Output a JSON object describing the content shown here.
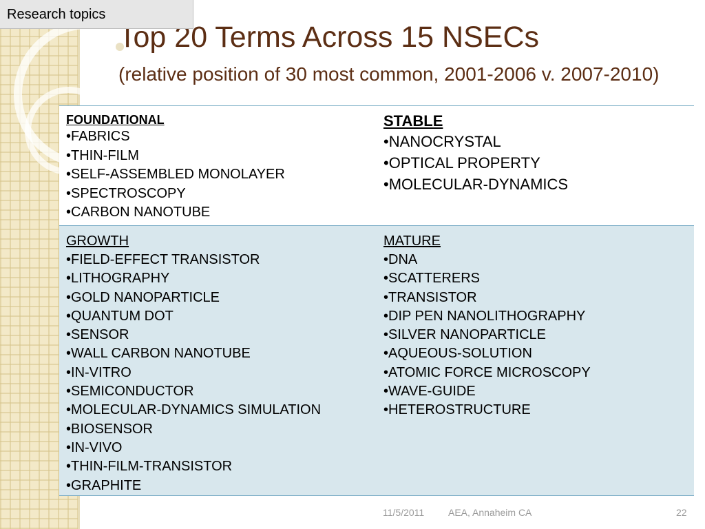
{
  "tag": "Research topics",
  "title": "Top 20 Terms Across 15 NSECs",
  "subtitle": "(relative position of 30 most common, 2001-2006 v. 2007-2010)",
  "quadrants": {
    "foundational": {
      "title": "FOUNDATIONAL",
      "items": [
        "FABRICS",
        "THIN-FILM",
        "SELF-ASSEMBLED MONOLAYER",
        "SPECTROSCOPY",
        "CARBON NANOTUBE"
      ]
    },
    "stable": {
      "title": "STABLE",
      "items": [
        "NANOCRYSTAL",
        "OPTICAL PROPERTY",
        "MOLECULAR-DYNAMICS"
      ]
    },
    "growth": {
      "title": "GROWTH",
      "items": [
        "FIELD-EFFECT TRANSISTOR",
        "LITHOGRAPHY",
        "GOLD NANOPARTICLE",
        "QUANTUM DOT",
        "SENSOR",
        "WALL CARBON NANOTUBE",
        "IN-VITRO",
        "SEMICONDUCTOR",
        "MOLECULAR-DYNAMICS SIMULATION",
        "BIOSENSOR",
        "IN-VIVO",
        "THIN-FILM-TRANSISTOR",
        "GRAPHITE"
      ]
    },
    "mature": {
      "title": "MATURE",
      "items": [
        "DNA",
        "SCATTERERS",
        "TRANSISTOR",
        "DIP PEN NANOLITHOGRAPHY",
        "SILVER NANOPARTICLE",
        "AQUEOUS-SOLUTION",
        "ATOMIC FORCE MICROSCOPY",
        "WAVE-GUIDE",
        "HETEROSTRUCTURE"
      ]
    }
  },
  "footer": {
    "date": "11/5/2011",
    "venue": "AEA, Annaheim CA",
    "page": "22"
  }
}
